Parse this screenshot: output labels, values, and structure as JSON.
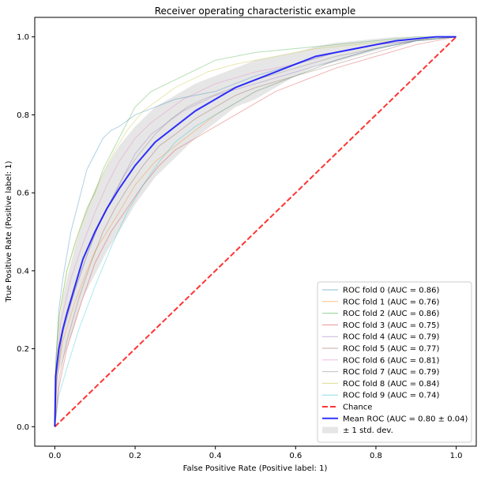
{
  "chart_data": {
    "type": "line",
    "title": "Receiver operating characteristic example",
    "xlabel": "False Positive Rate (Positive label: 1)",
    "ylabel": "True Positive Rate (Positive label: 1)",
    "xlim": [
      -0.05,
      1.05
    ],
    "ylim": [
      -0.05,
      1.05
    ],
    "xticks": [
      "0.0",
      "0.2",
      "0.4",
      "0.6",
      "0.8",
      "1.0"
    ],
    "yticks": [
      "0.0",
      "0.2",
      "0.4",
      "0.6",
      "0.8",
      "1.0"
    ],
    "grid": false,
    "legend_position": "lower-right",
    "folds": [
      {
        "name": "ROC fold 0 (AUC = 0.86)",
        "color": "#1f77b4",
        "x": [
          0,
          0.002,
          0.01,
          0.02,
          0.04,
          0.06,
          0.08,
          0.1,
          0.12,
          0.14,
          0.16,
          0.2,
          0.25,
          0.3,
          0.35,
          0.4,
          0.5,
          0.6,
          0.7,
          0.8,
          0.9,
          1.0
        ],
        "y": [
          0,
          0.15,
          0.3,
          0.38,
          0.5,
          0.58,
          0.66,
          0.7,
          0.74,
          0.76,
          0.77,
          0.8,
          0.82,
          0.84,
          0.85,
          0.86,
          0.9,
          0.93,
          0.96,
          0.98,
          0.99,
          1.0
        ]
      },
      {
        "name": "ROC fold 1 (AUC = 0.76)",
        "color": "#ff7f0e",
        "x": [
          0,
          0.005,
          0.02,
          0.05,
          0.08,
          0.1,
          0.13,
          0.16,
          0.2,
          0.25,
          0.3,
          0.35,
          0.4,
          0.45,
          0.5,
          0.6,
          0.7,
          0.8,
          0.9,
          1.0
        ],
        "y": [
          0,
          0.12,
          0.22,
          0.32,
          0.4,
          0.45,
          0.5,
          0.55,
          0.62,
          0.68,
          0.72,
          0.76,
          0.8,
          0.83,
          0.86,
          0.9,
          0.94,
          0.97,
          0.99,
          1.0
        ]
      },
      {
        "name": "ROC fold 2 (AUC = 0.86)",
        "color": "#2ca02c",
        "x": [
          0,
          0.003,
          0.01,
          0.03,
          0.05,
          0.08,
          0.1,
          0.12,
          0.15,
          0.18,
          0.2,
          0.24,
          0.28,
          0.32,
          0.36,
          0.4,
          0.5,
          0.6,
          0.7,
          0.8,
          0.9,
          1.0
        ],
        "y": [
          0,
          0.18,
          0.28,
          0.4,
          0.47,
          0.56,
          0.6,
          0.66,
          0.72,
          0.78,
          0.82,
          0.86,
          0.88,
          0.9,
          0.92,
          0.94,
          0.96,
          0.97,
          0.98,
          0.99,
          1.0,
          1.0
        ]
      },
      {
        "name": "ROC fold 3 (AUC = 0.75)",
        "color": "#d62728",
        "x": [
          0,
          0.01,
          0.03,
          0.06,
          0.1,
          0.14,
          0.18,
          0.22,
          0.26,
          0.3,
          0.35,
          0.4,
          0.45,
          0.5,
          0.55,
          0.6,
          0.7,
          0.8,
          0.9,
          1.0
        ],
        "y": [
          0,
          0.1,
          0.2,
          0.3,
          0.42,
          0.5,
          0.56,
          0.62,
          0.67,
          0.71,
          0.74,
          0.77,
          0.8,
          0.83,
          0.86,
          0.88,
          0.92,
          0.95,
          0.98,
          1.0
        ]
      },
      {
        "name": "ROC fold 4 (AUC = 0.79)",
        "color": "#9467bd",
        "x": [
          0,
          0.005,
          0.02,
          0.05,
          0.08,
          0.11,
          0.14,
          0.17,
          0.2,
          0.24,
          0.28,
          0.32,
          0.36,
          0.4,
          0.5,
          0.6,
          0.7,
          0.8,
          0.9,
          1.0
        ],
        "y": [
          0,
          0.14,
          0.25,
          0.35,
          0.44,
          0.52,
          0.58,
          0.64,
          0.7,
          0.75,
          0.78,
          0.81,
          0.83,
          0.85,
          0.88,
          0.91,
          0.94,
          0.97,
          0.99,
          1.0
        ]
      },
      {
        "name": "ROC fold 5 (AUC = 0.77)",
        "color": "#8c564b",
        "x": [
          0,
          0.01,
          0.03,
          0.06,
          0.09,
          0.12,
          0.15,
          0.18,
          0.22,
          0.26,
          0.3,
          0.35,
          0.4,
          0.45,
          0.5,
          0.6,
          0.7,
          0.8,
          0.9,
          1.0
        ],
        "y": [
          0,
          0.12,
          0.22,
          0.33,
          0.42,
          0.5,
          0.56,
          0.61,
          0.67,
          0.72,
          0.75,
          0.79,
          0.82,
          0.85,
          0.87,
          0.9,
          0.93,
          0.96,
          0.99,
          1.0
        ]
      },
      {
        "name": "ROC fold 6 (AUC = 0.81)",
        "color": "#e377c2",
        "x": [
          0,
          0.004,
          0.015,
          0.04,
          0.07,
          0.1,
          0.13,
          0.16,
          0.2,
          0.24,
          0.28,
          0.32,
          0.36,
          0.4,
          0.5,
          0.6,
          0.7,
          0.8,
          0.9,
          1.0
        ],
        "y": [
          0,
          0.15,
          0.27,
          0.38,
          0.47,
          0.55,
          0.62,
          0.68,
          0.74,
          0.78,
          0.81,
          0.84,
          0.86,
          0.88,
          0.91,
          0.93,
          0.96,
          0.98,
          0.99,
          1.0
        ]
      },
      {
        "name": "ROC fold 7 (AUC = 0.79)",
        "color": "#7f7f7f",
        "x": [
          0,
          0.006,
          0.02,
          0.05,
          0.08,
          0.11,
          0.14,
          0.17,
          0.21,
          0.25,
          0.29,
          0.33,
          0.37,
          0.42,
          0.5,
          0.6,
          0.7,
          0.8,
          0.9,
          1.0
        ],
        "y": [
          0,
          0.13,
          0.24,
          0.35,
          0.44,
          0.52,
          0.58,
          0.64,
          0.7,
          0.75,
          0.79,
          0.82,
          0.84,
          0.86,
          0.89,
          0.92,
          0.95,
          0.97,
          0.99,
          1.0
        ]
      },
      {
        "name": "ROC fold 8 (AUC = 0.84)",
        "color": "#bcbd22",
        "x": [
          0,
          0.003,
          0.012,
          0.03,
          0.06,
          0.09,
          0.12,
          0.15,
          0.18,
          0.22,
          0.26,
          0.3,
          0.34,
          0.38,
          0.45,
          0.55,
          0.65,
          0.75,
          0.85,
          1.0
        ],
        "y": [
          0,
          0.17,
          0.29,
          0.4,
          0.5,
          0.58,
          0.65,
          0.71,
          0.76,
          0.81,
          0.84,
          0.87,
          0.89,
          0.91,
          0.93,
          0.95,
          0.97,
          0.98,
          0.99,
          1.0
        ]
      },
      {
        "name": "ROC fold 9 (AUC = 0.74)",
        "color": "#17becf",
        "x": [
          0,
          0.01,
          0.03,
          0.06,
          0.1,
          0.14,
          0.18,
          0.22,
          0.26,
          0.3,
          0.35,
          0.4,
          0.45,
          0.5,
          0.55,
          0.6,
          0.7,
          0.8,
          0.9,
          1.0
        ],
        "y": [
          0,
          0.08,
          0.15,
          0.25,
          0.36,
          0.46,
          0.55,
          0.62,
          0.68,
          0.73,
          0.77,
          0.8,
          0.83,
          0.86,
          0.88,
          0.9,
          0.94,
          0.97,
          0.99,
          1.0
        ]
      }
    ],
    "chance": {
      "name": "Chance",
      "color": "#ff0000",
      "x": [
        0,
        1
      ],
      "y": [
        0,
        1
      ]
    },
    "mean": {
      "name": "Mean ROC (AUC = 0.80 ± 0.04)",
      "color": "#0000ff",
      "x": [
        0,
        0.002,
        0.01,
        0.02,
        0.03,
        0.05,
        0.07,
        0.1,
        0.13,
        0.16,
        0.2,
        0.25,
        0.3,
        0.35,
        0.4,
        0.45,
        0.5,
        0.55,
        0.6,
        0.65,
        0.7,
        0.75,
        0.8,
        0.85,
        0.9,
        0.95,
        1.0
      ],
      "y": [
        0,
        0.13,
        0.2,
        0.25,
        0.29,
        0.36,
        0.43,
        0.5,
        0.56,
        0.61,
        0.67,
        0.73,
        0.77,
        0.81,
        0.84,
        0.87,
        0.89,
        0.91,
        0.93,
        0.95,
        0.96,
        0.97,
        0.98,
        0.99,
        0.995,
        1.0,
        1.0
      ]
    },
    "std_band": {
      "name": "± 1 std. dev.",
      "color": "#808080",
      "x": [
        0,
        0.002,
        0.01,
        0.02,
        0.03,
        0.05,
        0.07,
        0.1,
        0.13,
        0.16,
        0.2,
        0.25,
        0.3,
        0.35,
        0.4,
        0.45,
        0.5,
        0.55,
        0.6,
        0.65,
        0.7,
        0.75,
        0.8,
        0.85,
        0.9,
        0.95,
        1.0
      ],
      "upper": [
        0,
        0.17,
        0.26,
        0.33,
        0.38,
        0.46,
        0.53,
        0.61,
        0.67,
        0.72,
        0.77,
        0.82,
        0.85,
        0.88,
        0.9,
        0.92,
        0.94,
        0.95,
        0.96,
        0.975,
        0.985,
        0.99,
        0.995,
        1.0,
        1.0,
        1.0,
        1.0
      ],
      "lower": [
        0,
        0.09,
        0.14,
        0.17,
        0.2,
        0.26,
        0.33,
        0.39,
        0.45,
        0.5,
        0.57,
        0.64,
        0.69,
        0.74,
        0.78,
        0.82,
        0.84,
        0.87,
        0.9,
        0.925,
        0.935,
        0.95,
        0.965,
        0.98,
        0.99,
        1.0,
        1.0
      ]
    }
  }
}
